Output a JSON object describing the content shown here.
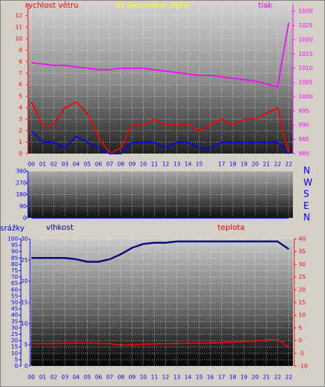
{
  "chart_data": [
    {
      "type": "line",
      "title": "03 December 2020",
      "x": [
        0,
        1,
        2,
        3,
        4,
        5,
        6,
        7,
        8,
        9,
        10,
        11,
        12,
        13,
        14,
        15,
        16,
        17,
        18,
        19,
        20,
        21,
        22,
        23
      ],
      "categories": [
        "00",
        "01",
        "02",
        "03",
        "04",
        "05",
        "06",
        "07",
        "08",
        "09",
        "10",
        "11",
        "12",
        "13",
        "14",
        "15",
        null,
        "17",
        "18",
        "19",
        "20",
        "21",
        "22",
        "22"
      ],
      "xlim": [
        0,
        23
      ],
      "ylim": [
        0,
        13
      ],
      "yticks": [
        0,
        1,
        2,
        3,
        4,
        5,
        6,
        7,
        8,
        9,
        10,
        11,
        12
      ],
      "y2lim": [
        980,
        1032.5
      ],
      "y2ticks": [
        980,
        985,
        990,
        995,
        1000,
        1005,
        1010,
        1015,
        1020,
        1025,
        1030
      ],
      "ytick_color": "#ff0000",
      "y2tick_color": "#ff00ff",
      "xtick_color": "#0000ff",
      "grid": true,
      "series": [
        {
          "name": "rychlost větru",
          "color": "#ff0000",
          "values": [
            4.5,
            2.5,
            2.5,
            4,
            4.5,
            3.5,
            1.5,
            0,
            0.5,
            2.5,
            2.5,
            3,
            2.5,
            2.5,
            2.5,
            2,
            2.5,
            3,
            2.5,
            3,
            3,
            3.5,
            4,
            0
          ]
        },
        {
          "color": "#0000ff",
          "values": [
            2,
            1,
            1,
            0.5,
            1.5,
            1,
            0.5,
            0,
            0,
            1,
            1,
            1,
            0.5,
            1,
            1,
            0.5,
            0.5,
            1,
            1,
            1,
            1,
            1,
            1,
            0
          ]
        },
        {
          "name": "tlak",
          "color": "#ff00ff",
          "axis": "y2",
          "values": [
            1012,
            1011.5,
            1011,
            1011,
            1010.5,
            1010,
            1009.5,
            1009.5,
            1010,
            1010,
            1010,
            1009.5,
            1009,
            1008.5,
            1008,
            1007.5,
            1007.5,
            1007,
            1006.5,
            1006,
            1005.5,
            1004.5,
            1003.5,
            1026
          ]
        }
      ]
    },
    {
      "type": "line",
      "x": [
        0,
        1,
        2,
        3,
        4,
        5,
        6,
        7,
        8,
        9,
        10,
        11,
        12,
        13,
        14,
        15,
        16,
        17,
        18,
        19,
        20,
        21,
        22,
        23
      ],
      "xlim": [
        0,
        23
      ],
      "ylim": [
        0,
        360
      ],
      "yticks": [
        0,
        90,
        180,
        270,
        360
      ],
      "y2lim": [
        0,
        360
      ],
      "y2ticks": [
        {
          "value": 360,
          "label": "N"
        },
        {
          "value": 270,
          "label": "W"
        },
        {
          "value": 180,
          "label": "S"
        },
        {
          "value": 90,
          "label": "E"
        },
        {
          "value": 0,
          "label": "N"
        }
      ],
      "ytick_color": "#0000ff",
      "y2tick_color": "#0000ff",
      "grid": true,
      "series": [
        {
          "color": "#0000ff",
          "values": [
            0,
            0,
            0,
            0,
            0,
            0,
            0,
            0,
            0,
            0,
            0,
            0,
            0,
            0,
            0,
            0,
            0,
            0,
            0,
            0,
            0,
            0,
            0,
            0
          ]
        }
      ]
    },
    {
      "type": "line",
      "x": [
        0,
        1,
        2,
        3,
        4,
        5,
        6,
        7,
        8,
        9,
        10,
        11,
        12,
        13,
        14,
        15,
        16,
        17,
        18,
        19,
        20,
        21,
        22,
        23
      ],
      "categories": [
        "00",
        "01",
        "02",
        "03",
        "04",
        "05",
        "06",
        "07",
        "08",
        "09",
        "10",
        "11",
        "12",
        "13",
        "14",
        "15",
        "16",
        "17",
        "18",
        "19",
        "20",
        "21",
        "22",
        "22"
      ],
      "xlim": [
        0,
        23
      ],
      "ylim": [
        0,
        100
      ],
      "yticks": [
        0,
        5,
        10,
        15,
        20,
        25,
        30,
        35,
        40,
        45,
        50,
        55,
        60,
        65,
        70,
        75,
        80,
        85,
        90,
        95,
        100
      ],
      "y3label": "srážky",
      "y3lim": [
        0,
        30
      ],
      "y3ticks": [
        0,
        5,
        10,
        15,
        20,
        25,
        30
      ],
      "y2lim": [
        -10,
        40
      ],
      "y2ticks": [
        -10,
        -5,
        0,
        5,
        10,
        15,
        20,
        25,
        30,
        35,
        40
      ],
      "ytick_color": "#0000ff",
      "y2tick_color": "#ff0000",
      "xtick_color": "#0000ff",
      "grid": true,
      "series": [
        {
          "name": "vlhkost",
          "color": "#000080",
          "values": [
            85,
            85,
            85,
            85,
            84,
            82,
            82,
            84,
            88,
            93,
            96,
            97,
            97,
            98,
            98,
            98,
            98,
            98,
            98,
            98,
            98,
            98,
            98,
            92
          ]
        },
        {
          "name": "teplota",
          "color": "#ff0000",
          "axis": "y2",
          "values": [
            -1.2,
            -1.2,
            -1.1,
            -1,
            -1,
            -1,
            -1.1,
            -1.2,
            -1.8,
            -1.6,
            -1.4,
            -1.3,
            -1.2,
            -1.1,
            -1,
            -1,
            -0.9,
            -0.8,
            -0.6,
            -0.4,
            -0.2,
            0.3,
            0.5,
            -2.6
          ]
        }
      ]
    }
  ]
}
